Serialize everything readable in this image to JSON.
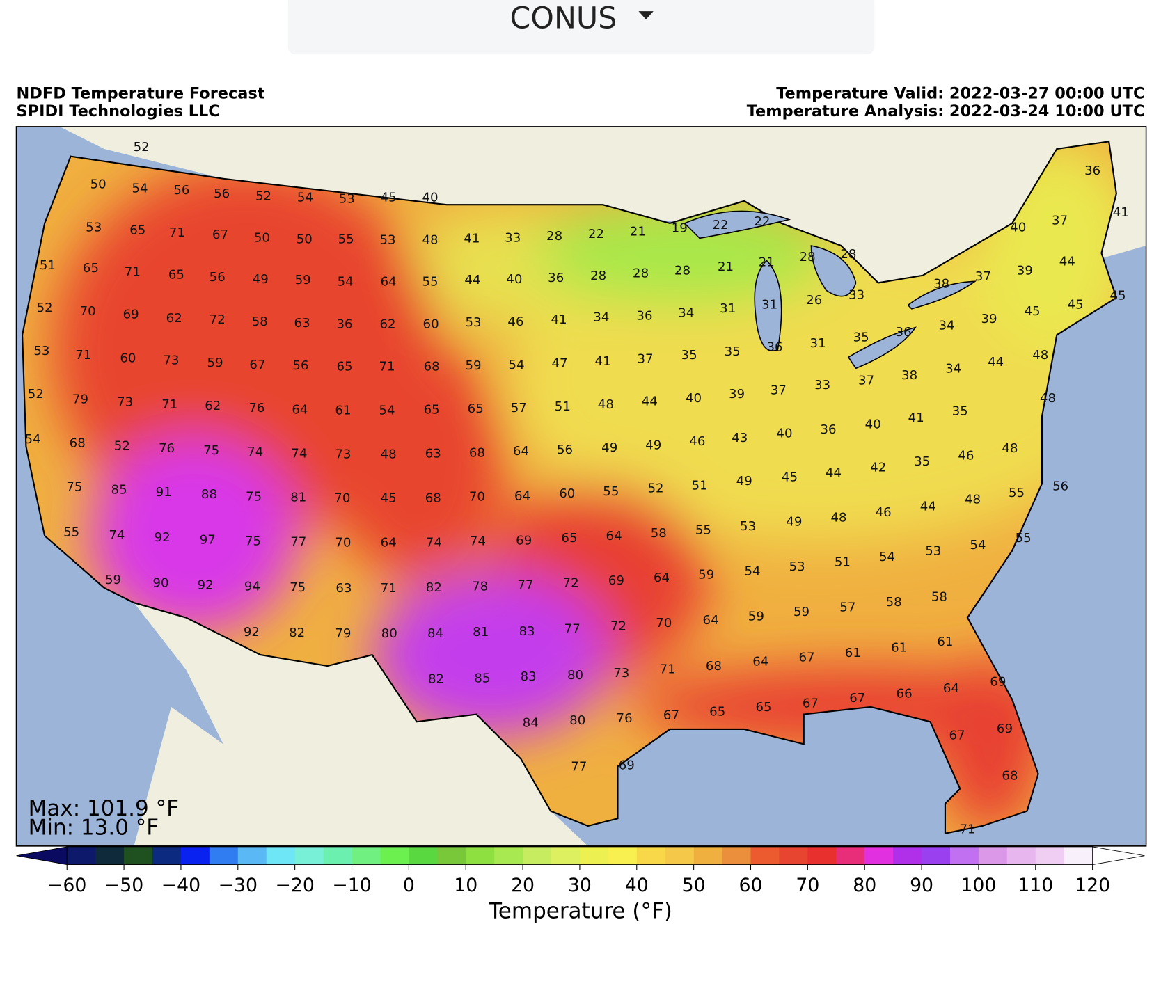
{
  "header": {
    "region": "CONUS"
  },
  "titles": {
    "product": "NDFD Temperature Forecast",
    "source": "SPIDI Technologies LLC",
    "valid": "Temperature Valid: 2022-03-27 00:00 UTC",
    "analysis": "Temperature Analysis: 2022-03-24 10:00 UTC"
  },
  "map": {
    "max": "Max: 101.9 °F",
    "min": "Min: 13.0 °F",
    "stations": [
      52,
      50,
      54,
      56,
      56,
      52,
      54,
      53,
      45,
      40,
      53,
      65,
      71,
      67,
      50,
      50,
      55,
      53,
      48,
      41,
      33,
      28,
      22,
      21,
      19,
      22,
      22,
      51,
      65,
      71,
      65,
      56,
      49,
      59,
      54,
      64,
      55,
      44,
      40,
      36,
      28,
      28,
      28,
      21,
      21,
      28,
      28,
      52,
      70,
      69,
      62,
      72,
      58,
      63,
      36,
      62,
      60,
      53,
      46,
      41,
      34,
      36,
      34,
      31,
      31,
      26,
      33,
      38,
      37,
      39,
      44,
      37,
      40,
      36,
      41,
      45,
      45,
      45,
      39,
      34,
      36,
      35,
      53,
      71,
      60,
      73,
      59,
      67,
      56,
      65,
      71,
      68,
      59,
      54,
      47,
      41,
      37,
      35,
      35,
      36,
      31,
      48,
      44,
      34,
      38,
      37,
      33,
      37,
      52,
      79,
      73,
      71,
      62,
      76,
      64,
      61,
      54,
      65,
      65,
      57,
      51,
      48,
      44,
      40,
      39,
      48,
      35,
      41,
      40,
      36,
      40,
      43,
      54,
      68,
      52,
      76,
      75,
      74,
      74,
      73,
      48,
      63,
      68,
      64,
      56,
      49,
      49,
      46,
      48,
      46,
      35,
      42,
      44,
      45,
      49,
      75,
      85,
      91,
      88,
      75,
      81,
      70,
      45,
      68,
      70,
      64,
      60,
      55,
      52,
      51,
      56,
      55,
      48,
      44,
      46,
      48,
      49,
      53,
      55,
      74,
      92,
      97,
      75,
      77,
      70,
      64,
      74,
      74,
      69,
      65,
      64,
      58,
      55,
      55,
      54,
      53,
      54,
      51,
      53,
      54,
      59,
      90,
      92,
      94,
      75,
      63,
      71,
      82,
      78,
      77,
      72,
      69,
      64,
      59,
      58,
      58,
      57,
      59,
      59,
      92,
      82,
      79,
      80,
      84,
      81,
      83,
      77,
      72,
      70,
      64,
      61,
      61,
      61,
      67,
      64,
      68,
      82,
      85,
      83,
      80,
      73,
      71,
      69,
      64,
      66,
      67,
      67,
      65,
      65,
      67,
      84,
      80,
      76,
      69,
      67,
      77,
      69,
      68,
      71
    ]
  },
  "colorbar": {
    "label": "Temperature (°F)",
    "range": [
      -60,
      120
    ],
    "ticks": [
      {
        "value": -60,
        "label": "−60"
      },
      {
        "value": -50,
        "label": "−50"
      },
      {
        "value": -40,
        "label": "−40"
      },
      {
        "value": -30,
        "label": "−30"
      },
      {
        "value": -20,
        "label": "−20"
      },
      {
        "value": -10,
        "label": "−10"
      },
      0,
      10,
      20,
      30,
      40,
      50,
      60,
      70,
      80,
      90,
      100,
      110,
      120
    ],
    "colors": [
      "#0d1a6b",
      "#0f2a3a",
      "#1e5020",
      "#0b2a80",
      "#0a22f0",
      "#2f7df0",
      "#5ab8f5",
      "#6ee6f5",
      "#78f0d8",
      "#6cf0b0",
      "#70f080",
      "#6cf050",
      "#5ad840",
      "#78c83a",
      "#8ee040",
      "#a8e850",
      "#c8ec60",
      "#ddf060",
      "#ecf050",
      "#f8f050",
      "#f8d848",
      "#f6c84a",
      "#f0b040",
      "#ec8f3c",
      "#ec5a30",
      "#e84530",
      "#e8302e",
      "#e82e78",
      "#e030e0",
      "#b030ea",
      "#9a40ee",
      "#c070f0",
      "#dc98e8",
      "#e8b6ee",
      "#f0cef4",
      "#f8f0fa"
    ],
    "under": "#0a0a60",
    "over": "#ffffff"
  }
}
